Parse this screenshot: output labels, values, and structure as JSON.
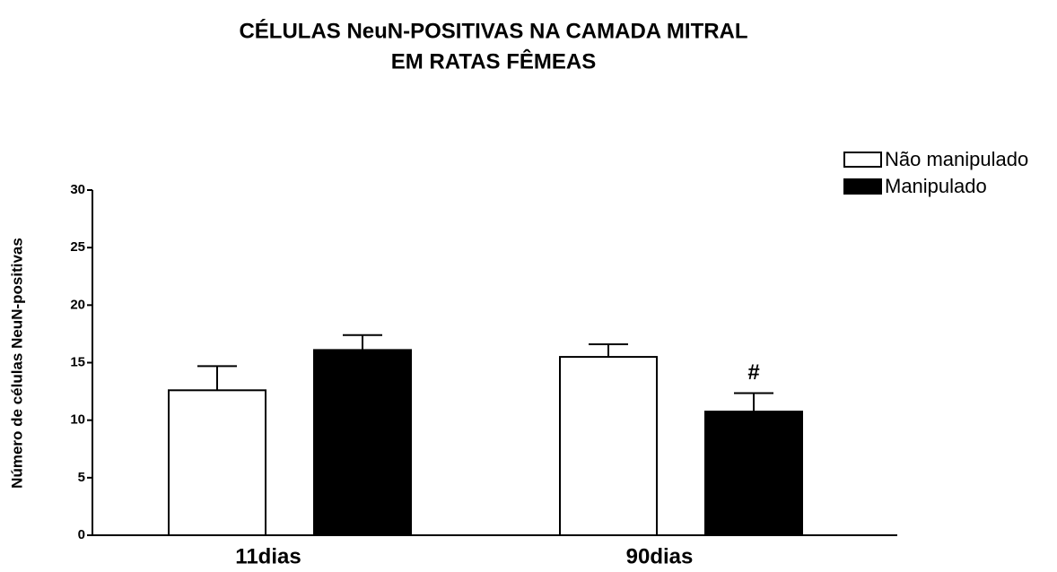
{
  "chart_data": {
    "type": "bar",
    "title": [
      "CÉLULAS NeuN-POSITIVAS NA CAMADA MITRAL",
      "EM RATAS FÊMEAS"
    ],
    "y_label": "Número de células NeuN-positivas",
    "categories": [
      "11dias",
      "90dias"
    ],
    "series": [
      {
        "name": "Não manipulado",
        "color": "#ffffff",
        "values": [
          12.6,
          15.5
        ],
        "errors": [
          2.1,
          1.1
        ]
      },
      {
        "name": "Manipulado",
        "color": "#000000",
        "values": [
          16.1,
          10.75
        ],
        "errors": [
          1.3,
          1.6
        ]
      }
    ],
    "annotations": [
      {
        "text": "#",
        "category": "90dias",
        "series": "Manipulado"
      }
    ],
    "ylim": [
      0,
      30
    ],
    "yticks": [
      0,
      5,
      10,
      15,
      20,
      25,
      30
    ],
    "legend": "top-right",
    "grid": false
  }
}
